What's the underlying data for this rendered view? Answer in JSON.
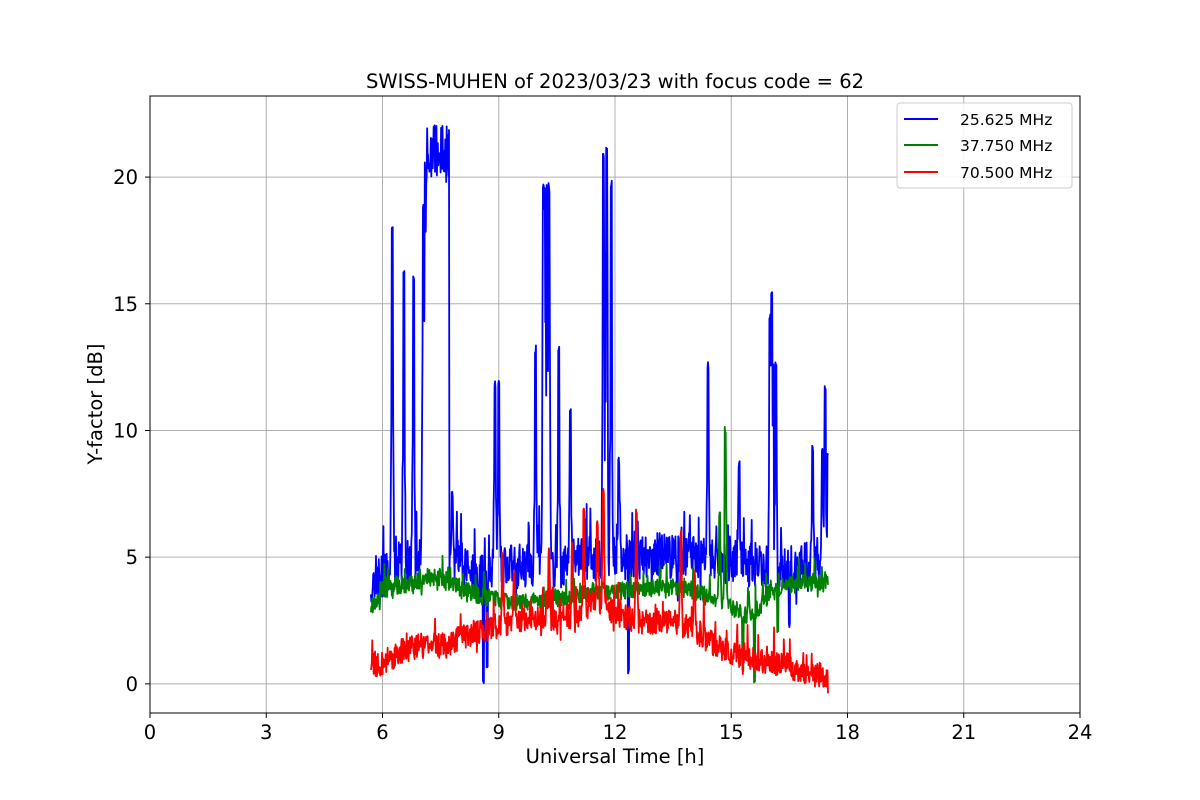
{
  "chart_data": {
    "type": "line",
    "title": "SWISS-MUHEN of 2023/03/23 with focus code = 62",
    "xlabel": "Universal Time [h]",
    "ylabel": "Y-factor [dB]",
    "xlim": [
      0,
      24
    ],
    "ylim": [
      -1.15,
      23.2
    ],
    "xticks": [
      0,
      3,
      6,
      9,
      12,
      15,
      18,
      21,
      24
    ],
    "yticks": [
      0,
      5,
      10,
      15,
      20
    ],
    "grid": true,
    "legend_position": "top-right",
    "series": [
      {
        "name": "25.625 MHz",
        "color": "#0000ff",
        "base": [
          [
            5.7,
            4.0
          ],
          [
            6.0,
            4.3
          ],
          [
            6.5,
            4.8
          ],
          [
            7.0,
            4.9
          ],
          [
            7.5,
            4.8
          ],
          [
            8.0,
            4.7
          ],
          [
            8.5,
            4.2
          ],
          [
            9.0,
            4.6
          ],
          [
            9.5,
            4.6
          ],
          [
            10.0,
            4.8
          ],
          [
            10.5,
            4.6
          ],
          [
            11.0,
            4.9
          ],
          [
            11.5,
            4.9
          ],
          [
            12.0,
            5.0
          ],
          [
            12.5,
            5.0
          ],
          [
            13.0,
            5.0
          ],
          [
            13.5,
            5.0
          ],
          [
            14.0,
            5.0
          ],
          [
            14.5,
            4.9
          ],
          [
            15.0,
            4.8
          ],
          [
            15.5,
            4.7
          ],
          [
            16.0,
            4.7
          ],
          [
            16.5,
            4.6
          ],
          [
            17.0,
            4.7
          ],
          [
            17.5,
            4.6
          ]
        ],
        "noise": 0.9,
        "spikes": [
          [
            6.25,
            18.3
          ],
          [
            6.55,
            16.4
          ],
          [
            6.8,
            16.2
          ],
          [
            7.05,
            19.0
          ],
          [
            7.1,
            21.8
          ],
          [
            7.3,
            22.1
          ],
          [
            7.45,
            22.0
          ],
          [
            7.65,
            21.4
          ],
          [
            7.8,
            7.6
          ],
          [
            8.9,
            12.0
          ],
          [
            9.0,
            12.0
          ],
          [
            9.95,
            13.4
          ],
          [
            10.15,
            19.8
          ],
          [
            10.25,
            19.7
          ],
          [
            10.3,
            19.8
          ],
          [
            10.55,
            13.4
          ],
          [
            10.85,
            11.0
          ],
          [
            11.7,
            21.1
          ],
          [
            11.78,
            21.2
          ],
          [
            11.9,
            20.0
          ],
          [
            12.1,
            9.0
          ],
          [
            14.4,
            12.7
          ],
          [
            15.2,
            8.8
          ],
          [
            16.0,
            14.6
          ],
          [
            16.05,
            15.6
          ],
          [
            16.15,
            12.8
          ],
          [
            17.1,
            9.5
          ],
          [
            17.35,
            9.6
          ],
          [
            17.42,
            11.9
          ],
          [
            17.5,
            9.4
          ]
        ],
        "dips": [
          [
            8.6,
            0.0
          ],
          [
            8.7,
            0.6
          ],
          [
            11.75,
            1.0
          ],
          [
            12.35,
            0.4
          ],
          [
            16.5,
            2.2
          ]
        ],
        "seed": 11
      },
      {
        "name": "37.750 MHz",
        "color": "#008000",
        "base": [
          [
            5.7,
            3.0
          ],
          [
            6.0,
            3.7
          ],
          [
            6.5,
            3.9
          ],
          [
            7.0,
            4.1
          ],
          [
            7.5,
            4.2
          ],
          [
            8.0,
            3.8
          ],
          [
            8.5,
            3.5
          ],
          [
            9.0,
            3.3
          ],
          [
            9.5,
            3.2
          ],
          [
            10.0,
            3.3
          ],
          [
            10.5,
            3.4
          ],
          [
            11.0,
            3.5
          ],
          [
            11.5,
            3.6
          ],
          [
            12.0,
            3.7
          ],
          [
            12.5,
            3.7
          ],
          [
            13.0,
            3.8
          ],
          [
            13.5,
            3.8
          ],
          [
            14.0,
            3.7
          ],
          [
            14.5,
            3.4
          ],
          [
            15.0,
            3.0
          ],
          [
            15.5,
            2.6
          ],
          [
            16.0,
            3.6
          ],
          [
            16.5,
            3.9
          ],
          [
            17.0,
            4.0
          ],
          [
            17.5,
            4.1
          ]
        ],
        "noise": 0.35,
        "spikes": [
          [
            14.85,
            10.2
          ],
          [
            14.7,
            6.8
          ],
          [
            15.45,
            3.8
          ]
        ],
        "dips": [
          [
            15.6,
            0.0
          ],
          [
            15.3,
            0.5
          ],
          [
            16.2,
            2.0
          ]
        ],
        "seed": 23
      },
      {
        "name": "70.500 MHz",
        "color": "#ff0000",
        "base": [
          [
            5.7,
            0.8
          ],
          [
            6.0,
            0.8
          ],
          [
            6.5,
            1.3
          ],
          [
            7.0,
            1.5
          ],
          [
            7.5,
            1.6
          ],
          [
            8.0,
            1.8
          ],
          [
            8.5,
            2.1
          ],
          [
            9.0,
            2.3
          ],
          [
            9.5,
            2.5
          ],
          [
            10.0,
            2.6
          ],
          [
            10.5,
            2.6
          ],
          [
            11.0,
            2.7
          ],
          [
            11.5,
            3.2
          ],
          [
            12.0,
            2.8
          ],
          [
            12.5,
            2.5
          ],
          [
            13.0,
            2.4
          ],
          [
            13.5,
            2.5
          ],
          [
            14.0,
            2.1
          ],
          [
            14.5,
            1.6
          ],
          [
            15.0,
            1.2
          ],
          [
            15.5,
            1.0
          ],
          [
            16.0,
            0.8
          ],
          [
            16.5,
            0.7
          ],
          [
            17.0,
            0.4
          ],
          [
            17.5,
            0.3
          ]
        ],
        "noise": 0.5,
        "spikes": [
          [
            9.1,
            5.3
          ],
          [
            9.4,
            4.6
          ],
          [
            10.3,
            5.4
          ],
          [
            10.9,
            5.6
          ],
          [
            11.2,
            7.0
          ],
          [
            11.55,
            6.5
          ],
          [
            11.7,
            7.9
          ],
          [
            12.55,
            7.1
          ],
          [
            13.7,
            6.1
          ],
          [
            14.05,
            4.5
          ]
        ],
        "dips": [
          [
            5.95,
            0.2
          ],
          [
            17.4,
            0.1
          ]
        ],
        "seed": 37
      }
    ]
  }
}
